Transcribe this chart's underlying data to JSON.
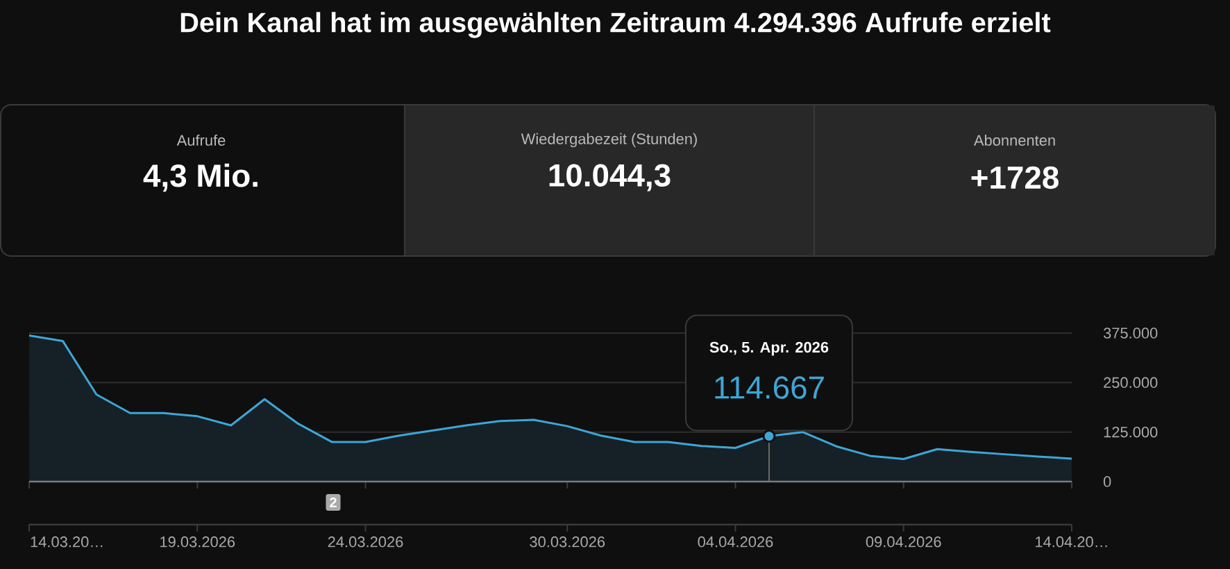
{
  "chart_data": {
    "type": "area",
    "title": "Dein Kanal hat im ausgewählten Zeitraum 4.294.396 Aufrufe erzielt",
    "x": [
      "2026-03-14",
      "2026-03-15",
      "2026-03-16",
      "2026-03-17",
      "2026-03-18",
      "2026-03-19",
      "2026-03-20",
      "2026-03-21",
      "2026-03-22",
      "2026-03-23",
      "2026-03-24",
      "2026-03-25",
      "2026-03-26",
      "2026-03-27",
      "2026-03-28",
      "2026-03-29",
      "2026-03-30",
      "2026-03-31",
      "2026-04-01",
      "2026-04-02",
      "2026-04-03",
      "2026-04-04",
      "2026-04-05",
      "2026-04-06",
      "2026-04-07",
      "2026-04-08",
      "2026-04-09",
      "2026-04-10",
      "2026-04-11",
      "2026-04-12",
      "2026-04-13",
      "2026-04-14"
    ],
    "series": [
      {
        "color": "#3ea6d6",
        "values": [
          369000,
          355000,
          220000,
          173000,
          173000,
          165000,
          142000,
          208000,
          146000,
          100000,
          100000,
          116000,
          129000,
          142000,
          153000,
          156000,
          140000,
          116000,
          100000,
          100000,
          90000,
          85000,
          114667,
          125000,
          89000,
          65000,
          57000,
          82000,
          75000,
          69000,
          63000,
          58000
        ]
      }
    ],
    "xlim": [
      "2026-03-14",
      "2026-04-14"
    ],
    "xticks": [
      {
        "value": "2026-03-14",
        "label": "14.03.20…"
      },
      {
        "value": "2026-03-19",
        "label": "19.03.2026"
      },
      {
        "value": "2026-03-24",
        "label": "24.03.2026"
      },
      {
        "value": "2026-03-30",
        "label": "30.03.2026"
      },
      {
        "value": "2026-04-04",
        "label": "04.04.2026"
      },
      {
        "value": "2026-04-09",
        "label": "09.04.2026"
      },
      {
        "value": "2026-04-14",
        "label": "14.04.20…"
      }
    ],
    "ylim": [
      0,
      375000
    ],
    "yticks": [
      {
        "value": 0,
        "label": "0"
      },
      {
        "value": 125000,
        "label": "125.000"
      },
      {
        "value": 250000,
        "label": "250.000"
      },
      {
        "value": 375000,
        "label": "375.000"
      }
    ],
    "grid": "y",
    "annotations": [
      "Aufrufe",
      "4,3 Mio.",
      "Wiedergabezeit (Stunden)",
      "10.044,3",
      "Abonnenten",
      "+1728",
      "So., 5. Apr. 2026",
      {
        "text": "114.667",
        "x": "2026-04-05",
        "y": 114667
      },
      "2"
    ]
  }
}
